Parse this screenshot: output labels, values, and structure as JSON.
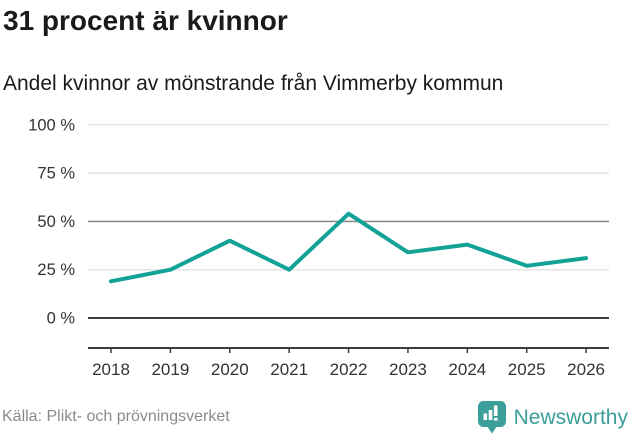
{
  "header": {
    "title": "31 procent är kvinnor",
    "subtitle": "Andel kvinnor av mönstrande från Vimmerby kommun"
  },
  "chart_data": {
    "type": "line",
    "title": "31 procent är kvinnor",
    "subtitle": "Andel kvinnor av mönstrande från Vimmerby kommun",
    "categories": [
      "2018",
      "2019",
      "2020",
      "2021",
      "2022",
      "2023",
      "2024",
      "2025",
      "2026"
    ],
    "series": [
      {
        "name": "Andel kvinnor av mönstrande (%)",
        "values": [
          19,
          25,
          40,
          25,
          54,
          34,
          38,
          27,
          31
        ]
      }
    ],
    "xlabel": "",
    "ylabel": "",
    "ylim": [
      0,
      100
    ],
    "yticks": [
      0,
      25,
      50,
      75,
      100
    ],
    "ytick_suffix": " %",
    "grid": true,
    "legend": false,
    "line_color": "#12a296"
  },
  "colors": {
    "line": "#12a296",
    "grid_light": "#e4e4e4",
    "grid_mid": "#8c8c8c",
    "axis_dark": "#3d3d3d",
    "tick_text": "#333333",
    "source_text": "#8a8a8a",
    "brand_teal": "#3b9e98"
  },
  "footer": {
    "source": "Källa: Plikt- och prövningsverket",
    "brand": "Newsworthy"
  }
}
